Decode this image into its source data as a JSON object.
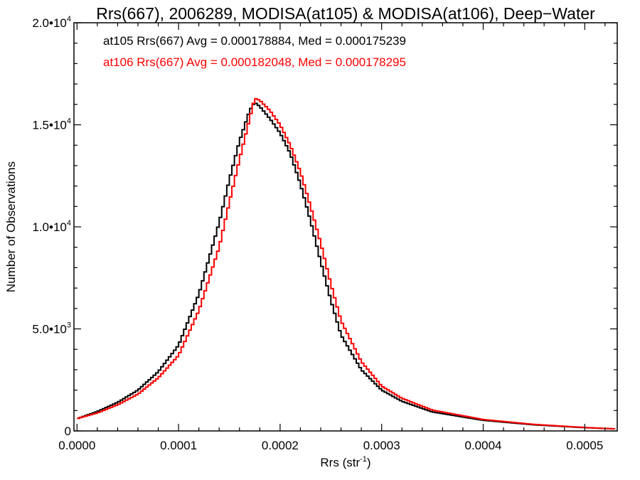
{
  "chart_data": {
    "type": "line",
    "step": true,
    "title": "Rrs(667), 2006289, MODISA(at105) & MODISA(at106), Deep−Water",
    "xlabel": "Rrs (str",
    "xlabel_sup": "-1",
    "xlabel_close": ")",
    "ylabel": "Number of Observations",
    "xlim": [
      -3e-06,
      0.000532
    ],
    "ylim": [
      0,
      20000
    ],
    "grid": false,
    "x_ticks": [
      0.0,
      0.0001,
      0.0002,
      0.0003,
      0.0004,
      0.0005
    ],
    "x_tick_labels": [
      "0.0000",
      "0.0001",
      "0.0002",
      "0.0003",
      "0.0004",
      "0.0005"
    ],
    "y_ticks": [
      0,
      5000,
      10000,
      15000,
      20000
    ],
    "y_tick_labels": [
      {
        "base": "0",
        "exp": ""
      },
      {
        "base": "5.0•10",
        "exp": "3"
      },
      {
        "base": "1.0•10",
        "exp": "4"
      },
      {
        "base": "1.5•10",
        "exp": "4"
      },
      {
        "base": "2.0•10",
        "exp": "4"
      }
    ],
    "annotations": [
      {
        "text": "at105 Rrs(667) Avg = 0.000178884, Med = 0.000175239",
        "color": "#000000"
      },
      {
        "text": "at106 Rrs(667) Avg = 0.000182048, Med = 0.000178295",
        "color": "#ff0000"
      }
    ],
    "series": [
      {
        "name": "at105",
        "color": "#000000",
        "x": [
          0.0,
          2e-05,
          4e-05,
          6e-05,
          8e-05,
          0.0001,
          0.00012,
          0.00014,
          0.00015,
          0.00016,
          0.00017,
          0.000175,
          0.00018,
          0.00019,
          0.0002,
          0.00021,
          0.00022,
          0.00023,
          0.00024,
          0.00025,
          0.00026,
          0.00028,
          0.0003,
          0.00032,
          0.00035,
          0.0004,
          0.00045,
          0.0005,
          0.00053
        ],
        "y": [
          600,
          950,
          1400,
          2000,
          2900,
          4200,
          6700,
          10200,
          12300,
          14200,
          15700,
          16100,
          15900,
          15300,
          14600,
          13600,
          12100,
          10300,
          8300,
          6400,
          4700,
          3000,
          2000,
          1450,
          930,
          520,
          300,
          160,
          100
        ]
      },
      {
        "name": "at106",
        "color": "#ff0000",
        "x": [
          0.0,
          2e-05,
          4e-05,
          6e-05,
          8e-05,
          0.0001,
          0.00012,
          0.00014,
          0.00015,
          0.00016,
          0.00017,
          0.000175,
          0.00018,
          0.00019,
          0.0002,
          0.00021,
          0.00022,
          0.00023,
          0.00024,
          0.00025,
          0.00026,
          0.00028,
          0.0003,
          0.00032,
          0.00035,
          0.0004,
          0.00045,
          0.0005,
          0.00053
        ],
        "y": [
          600,
          880,
          1280,
          1800,
          2600,
          3700,
          5900,
          9000,
          11200,
          13300,
          15300,
          16300,
          16200,
          15700,
          15000,
          14000,
          12700,
          11000,
          9200,
          7200,
          5400,
          3400,
          2200,
          1600,
          1020,
          560,
          320,
          170,
          100
        ]
      }
    ]
  }
}
